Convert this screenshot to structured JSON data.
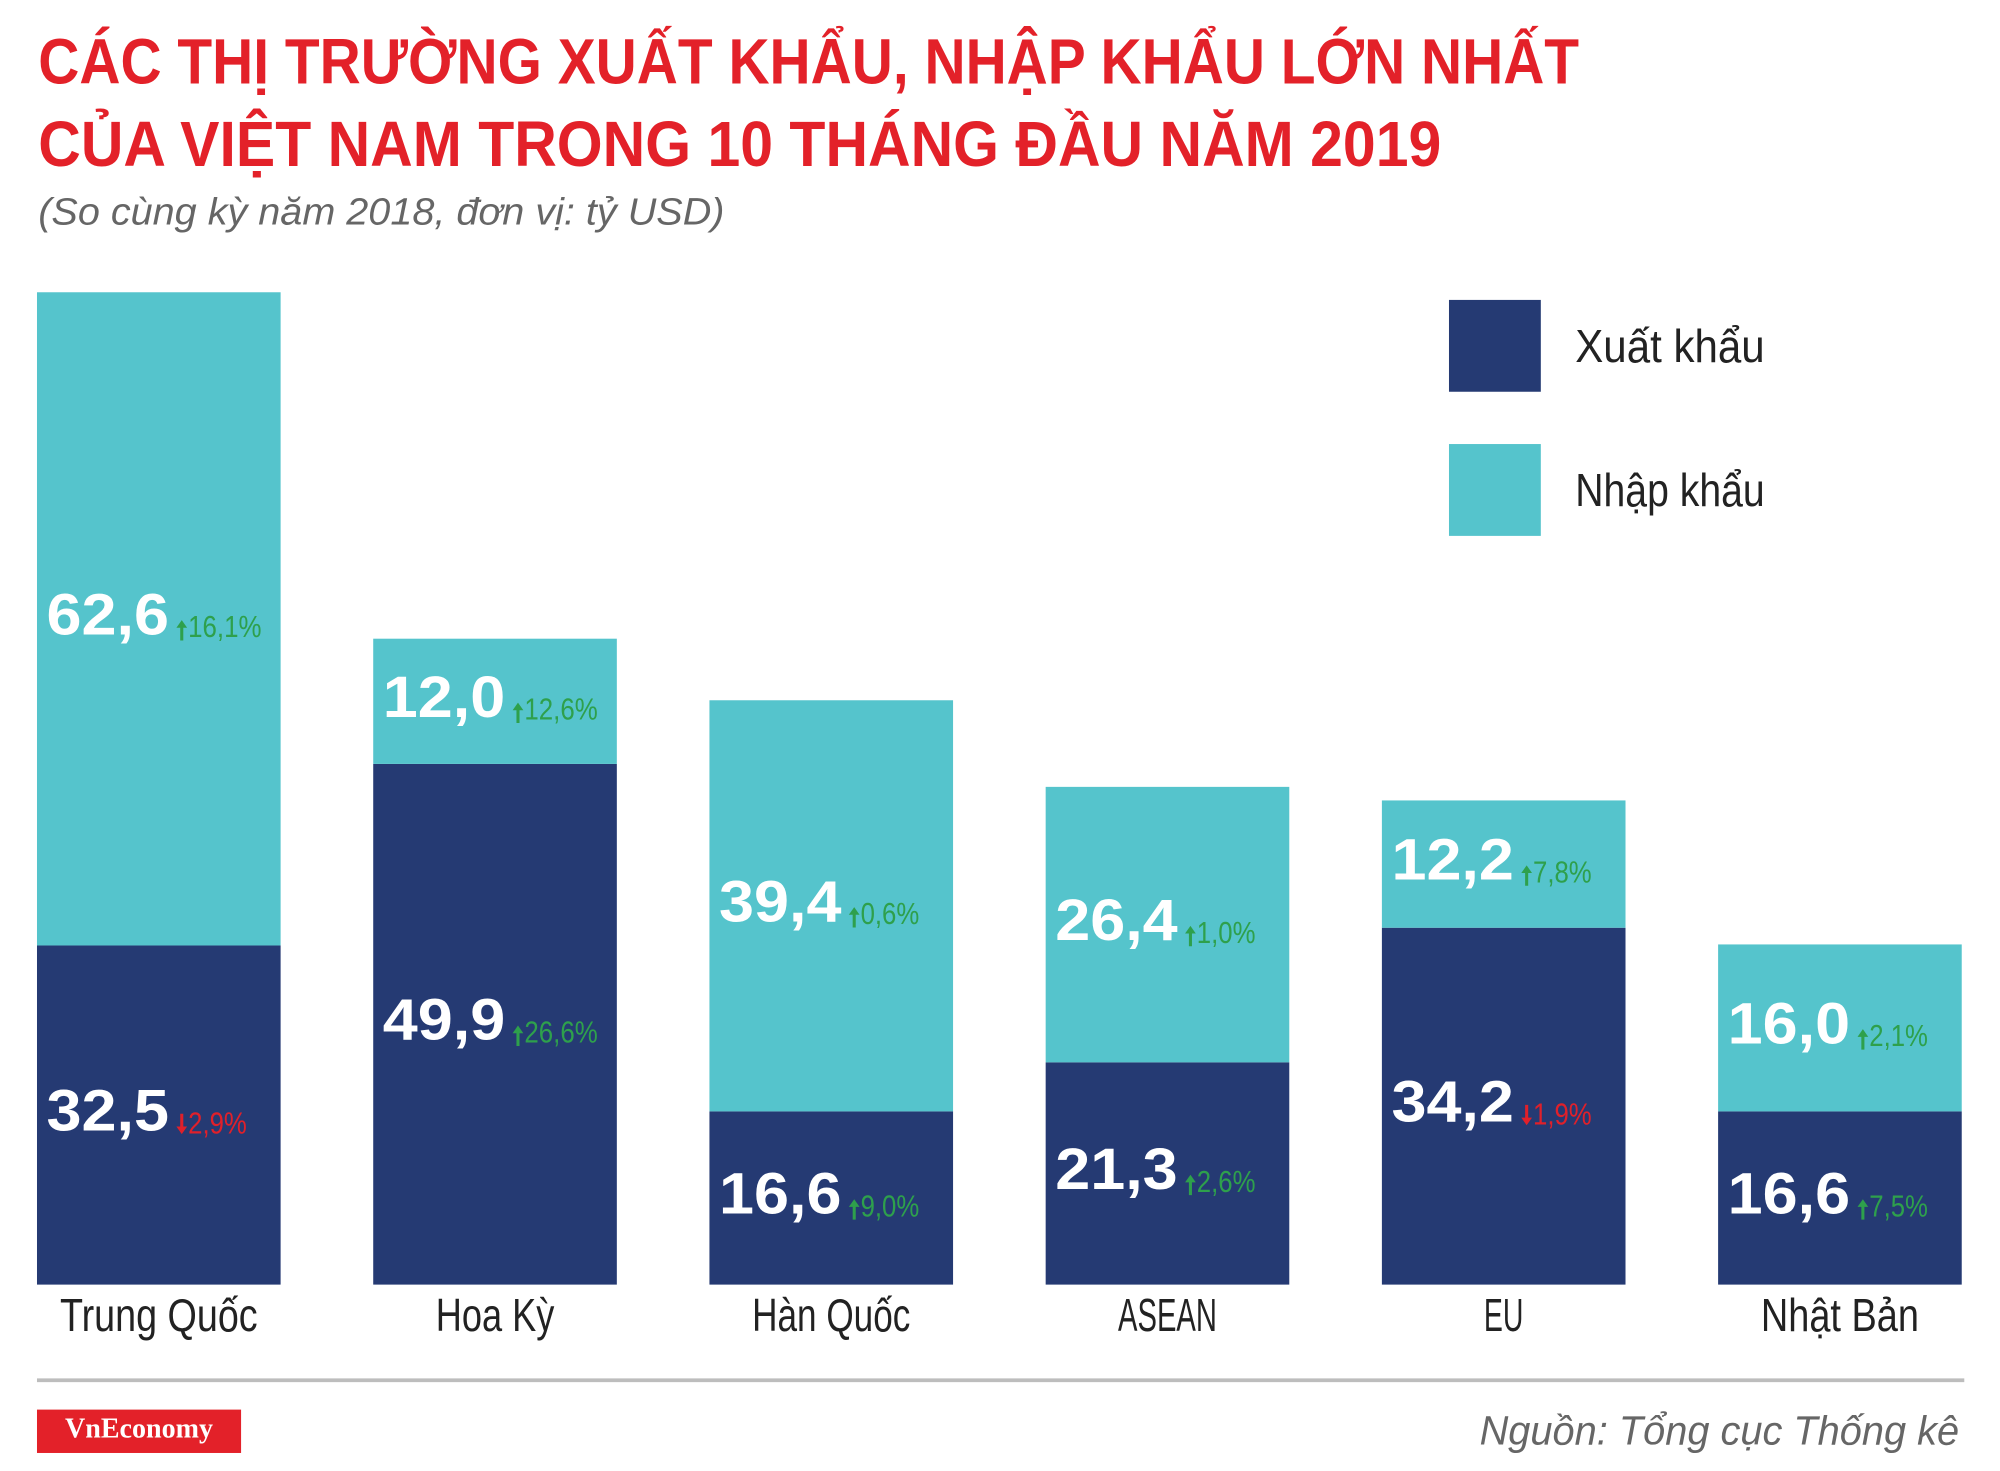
{
  "chart_data": {
    "type": "bar",
    "stacked": true,
    "title": [
      "CÁC THỊ TRƯỜNG XUẤT KHẨU, NHẬP KHẨU LỚN NHẤT",
      "CỦA VIỆT NAM TRONG 10 THÁNG ĐẦU NĂM 2019"
    ],
    "subtitle": "(So cùng kỳ năm 2018, đơn vị: tỷ USD)",
    "categories": [
      "Trung Quốc",
      "Hoa Kỳ",
      "Hàn Quốc",
      "ASEAN",
      "EU",
      "Nhật Bản"
    ],
    "series": [
      {
        "name": "Xuất khẩu",
        "color": "#253a73",
        "values": [
          32.5,
          49.9,
          16.6,
          21.3,
          34.2,
          16.6
        ],
        "value_labels": [
          "32,5",
          "49,9",
          "16,6",
          "21,3",
          "34,2",
          "16,6"
        ],
        "growth": [
          -2.9,
          26.6,
          9.0,
          2.6,
          -1.9,
          7.5
        ],
        "growth_labels": [
          "2,9%",
          "26,6%",
          "9,0%",
          "2,6%",
          "1,9%",
          "7,5%"
        ]
      },
      {
        "name": "Nhập khẩu",
        "color": "#55c4cc",
        "values": [
          62.6,
          12.0,
          39.4,
          26.4,
          12.2,
          16.0
        ],
        "value_labels": [
          "62,6",
          "12,0",
          "39,4",
          "26,4",
          "12,2",
          "16,0"
        ],
        "growth": [
          16.1,
          12.6,
          0.6,
          1.0,
          7.8,
          2.1
        ],
        "growth_labels": [
          "16,1%",
          "12,6%",
          "0,6%",
          "1,0%",
          "7,8%",
          "2,1%"
        ]
      }
    ],
    "legend": "top-right"
  },
  "logo": "VnEconomy",
  "source": "Nguồn: Tổng cục Thống kê"
}
